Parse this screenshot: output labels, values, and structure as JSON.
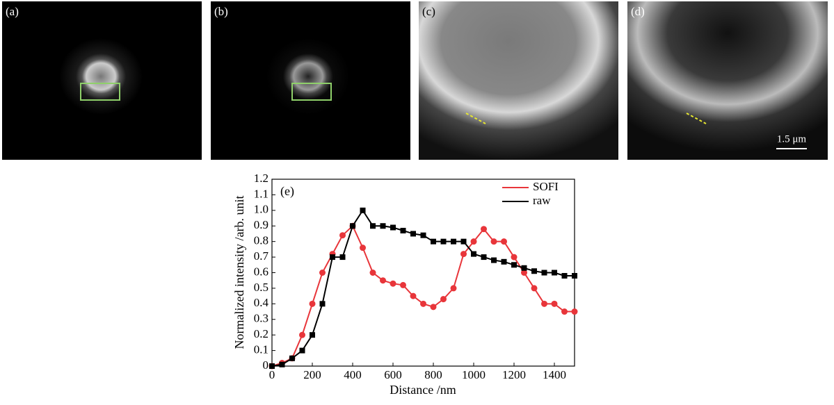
{
  "panels": [
    {
      "label": "(a)"
    },
    {
      "label": "(b)"
    },
    {
      "label": "(c)"
    },
    {
      "label": "(d)"
    }
  ],
  "scale_bar": "1.5 μm",
  "chart_data": {
    "type": "line",
    "annotation": "(e)",
    "x_label": "Distance /nm",
    "y_label": "Normalized intensity /arb. unit",
    "xlim": [
      0,
      1500
    ],
    "ylim": [
      0,
      1.2
    ],
    "xticks": [
      0,
      200,
      400,
      600,
      800,
      1000,
      1200,
      1400
    ],
    "yticks": [
      0,
      0.1,
      0.2,
      0.3,
      0.4,
      0.5,
      0.6,
      0.7,
      0.8,
      0.9,
      {
        "value": 1,
        "label": "1.0"
      },
      1.1,
      1.2
    ],
    "legend": "upper-right",
    "series": [
      {
        "name": "SOFI",
        "color": "#e8353a",
        "marker": "circle",
        "x": [
          0,
          50,
          100,
          150,
          200,
          250,
          300,
          350,
          400,
          450,
          500,
          550,
          600,
          650,
          700,
          750,
          800,
          850,
          900,
          950,
          1000,
          1050,
          1100,
          1150,
          1200,
          1250,
          1300,
          1350,
          1400,
          1450,
          1500
        ],
        "values": [
          0,
          0.02,
          0.05,
          0.2,
          0.4,
          0.6,
          0.72,
          0.84,
          0.9,
          0.76,
          0.6,
          0.55,
          0.53,
          0.52,
          0.45,
          0.4,
          0.38,
          0.43,
          0.5,
          0.72,
          0.8,
          0.88,
          0.8,
          0.8,
          0.7,
          0.6,
          0.5,
          0.4,
          0.4,
          0.35,
          0.35
        ]
      },
      {
        "name": "raw",
        "color": "#000000",
        "marker": "square",
        "x": [
          0,
          50,
          100,
          150,
          200,
          250,
          300,
          350,
          400,
          450,
          500,
          550,
          600,
          650,
          700,
          750,
          800,
          850,
          900,
          950,
          1000,
          1050,
          1100,
          1150,
          1200,
          1250,
          1300,
          1350,
          1400,
          1450,
          1500
        ],
        "values": [
          0,
          0.01,
          0.05,
          0.1,
          0.2,
          0.4,
          0.7,
          0.7,
          0.9,
          1,
          0.9,
          0.9,
          0.89,
          0.87,
          0.85,
          0.84,
          0.8,
          0.8,
          0.8,
          0.8,
          0.72,
          0.7,
          0.68,
          0.67,
          0.65,
          0.63,
          0.61,
          0.6,
          0.6,
          0.58,
          0.58
        ]
      }
    ]
  }
}
